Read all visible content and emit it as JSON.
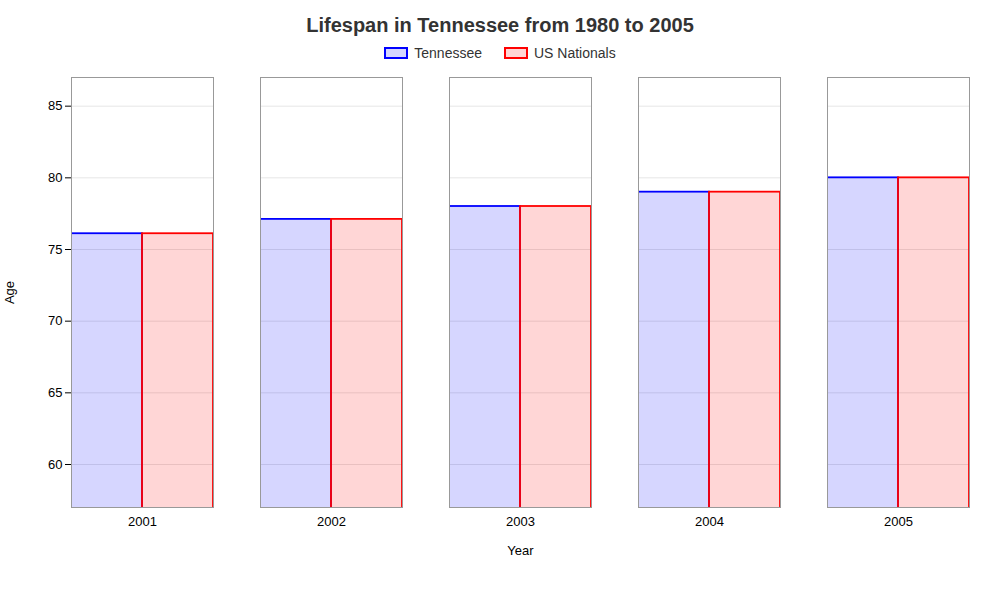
{
  "chart_data": {
    "type": "bar",
    "title": "Lifespan in Tennessee from 1980 to 2005",
    "x_label": "Year",
    "y_label": "Age",
    "categories": [
      "2001",
      "2002",
      "2003",
      "2004",
      "2005"
    ],
    "series": [
      {
        "name": "Tennessee",
        "color": "#0000ff",
        "values": [
          76.1,
          77.1,
          78.0,
          79.0,
          80.0
        ]
      },
      {
        "name": "US Nationals",
        "color": "#ff0000",
        "values": [
          76.1,
          77.1,
          78.0,
          79.0,
          80.0
        ]
      }
    ],
    "ylim": [
      57,
      87
    ],
    "yticks": [
      60,
      65,
      70,
      75,
      80,
      85
    ],
    "grid": true,
    "legend": "top"
  }
}
